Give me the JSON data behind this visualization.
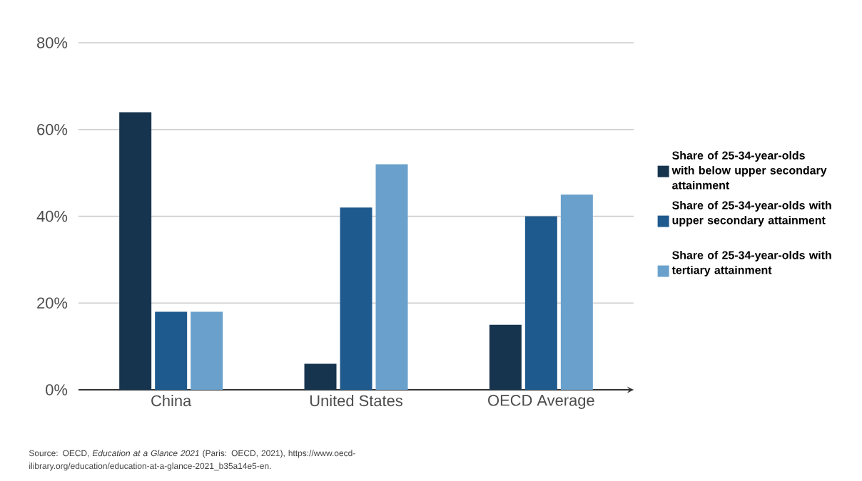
{
  "chart_data": {
    "type": "bar",
    "categories": [
      "China",
      "United States",
      "OECD Average"
    ],
    "series": [
      {
        "name": "Share of 25-34-year-olds with below upper secondary attainment",
        "color": "#17344f",
        "values": [
          64,
          6,
          15
        ]
      },
      {
        "name": "Share of 25-34-year-olds with upper secondary attainment",
        "color": "#1f5a8e",
        "values": [
          18,
          42,
          40
        ]
      },
      {
        "name": "Share of 25-34-year-olds with tertiary attainment",
        "color": "#6aa1cc",
        "values": [
          18,
          52,
          45
        ]
      }
    ],
    "ylim": [
      0,
      80
    ],
    "yticks": [
      {
        "value": 0,
        "label": "0%"
      },
      {
        "value": 20,
        "label": "20%"
      },
      {
        "value": 40,
        "label": "40%"
      },
      {
        "value": 60,
        "label": "60%"
      },
      {
        "value": 80,
        "label": "80%"
      }
    ],
    "grid": "y",
    "legend": "right",
    "annotations": [
      "Source: OECD, *Education at a Glance 2021* (Paris: OECD, 2021), https://www.oecd-ilibrary.org/education/education-at-a-glance-2021_b35a14e5-en."
    ]
  }
}
